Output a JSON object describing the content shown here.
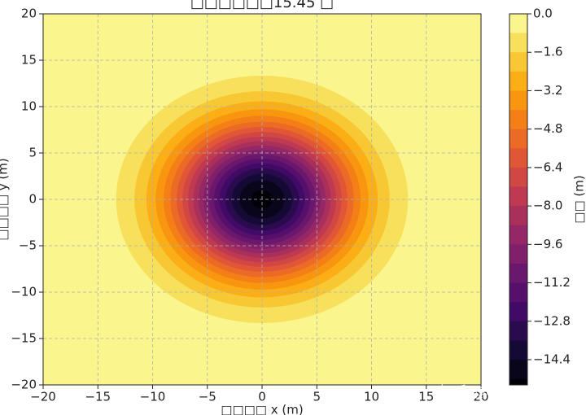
{
  "chart_data": {
    "type": "contour",
    "title": "□□□□□□15.45 □",
    "x_label": "□□□□ x (m)",
    "y_label": "□□□□ y (m)",
    "colorbar_label": "□□ (m)",
    "watermark": "知乎 @Ubuntu1904",
    "colormap": "inferno",
    "grid": true,
    "xlim": [
      -20,
      20
    ],
    "ylim": [
      -20,
      20
    ],
    "xticks": [
      {
        "value": -20,
        "label": "−20"
      },
      {
        "value": -15,
        "label": "−15"
      },
      {
        "value": -10,
        "label": "−10"
      },
      {
        "value": -5,
        "label": "−5"
      },
      0,
      5,
      10,
      15,
      20
    ],
    "yticks": [
      {
        "value": -20,
        "label": "−20"
      },
      {
        "value": -15,
        "label": "−15"
      },
      {
        "value": -10,
        "label": "−10"
      },
      {
        "value": -5,
        "label": "−5"
      },
      0,
      5,
      10,
      15,
      20
    ],
    "center": [
      0,
      0
    ],
    "contours": {
      "levels": [
        -0.8,
        -1.6,
        -2.4,
        -3.2,
        -4.0,
        -4.8,
        -5.6,
        -6.4,
        -7.2,
        -8.0,
        -8.8,
        -9.6,
        -10.4,
        -11.2,
        -12.0,
        -12.8,
        -13.6,
        -14.4,
        -15.2
      ],
      "radii": [
        13.33,
        11.66,
        10.57,
        9.72,
        9.0,
        8.38,
        7.8,
        7.27,
        6.77,
        6.28,
        5.81,
        5.34,
        4.87,
        4.39,
        3.89,
        3.36,
        2.77,
        2.05,
        0.99
      ]
    },
    "zlim": [
      -15.45,
      0
    ],
    "zticks": [
      {
        "value": 0,
        "label": "0.0"
      },
      {
        "value": -1.6,
        "label": "−1.6"
      },
      {
        "value": -3.2,
        "label": "−3.2"
      },
      {
        "value": -4.8,
        "label": "−4.8"
      },
      {
        "value": -6.4,
        "label": "−6.4"
      },
      {
        "value": -8.0,
        "label": "−8.0"
      },
      {
        "value": -9.6,
        "label": "−9.6"
      },
      {
        "value": -11.2,
        "label": "−11.2"
      },
      {
        "value": -12.8,
        "label": "−12.8"
      },
      {
        "value": -14.4,
        "label": "−14.4"
      }
    ]
  }
}
